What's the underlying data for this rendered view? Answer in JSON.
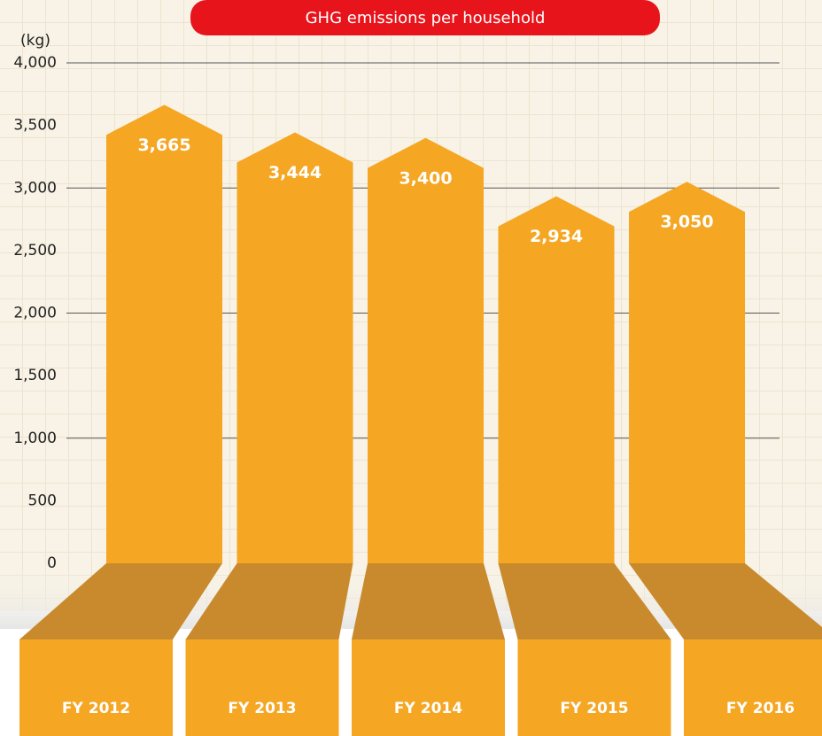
{
  "chart_data": {
    "type": "bar",
    "title": "GHG emissions per household",
    "y_unit": "(kg)",
    "categories": [
      "FY 2012",
      "FY 2013",
      "FY 2014",
      "FY 2015",
      "FY 2016"
    ],
    "values": [
      3665,
      3444,
      3400,
      2934,
      3050
    ],
    "value_labels": [
      "3,665",
      "3,444",
      "3,400",
      "2,934",
      "3,050"
    ],
    "color": "#f5a623",
    "base_color": "#c98a2e",
    "title_color": "#e8141b",
    "ylim": [
      0,
      4000
    ],
    "yticks": [
      0,
      500,
      {
        "value": 1000,
        "label": "1,000"
      },
      {
        "value": 1500,
        "label": "1,500"
      },
      {
        "value": 2000,
        "label": "2,000"
      },
      {
        "value": 2500,
        "label": "2,500"
      },
      {
        "value": 3000,
        "label": "3,000"
      },
      {
        "value": 3500,
        "label": "3,500"
      },
      {
        "value": 4000,
        "label": "4,000"
      }
    ],
    "grid": true
  }
}
